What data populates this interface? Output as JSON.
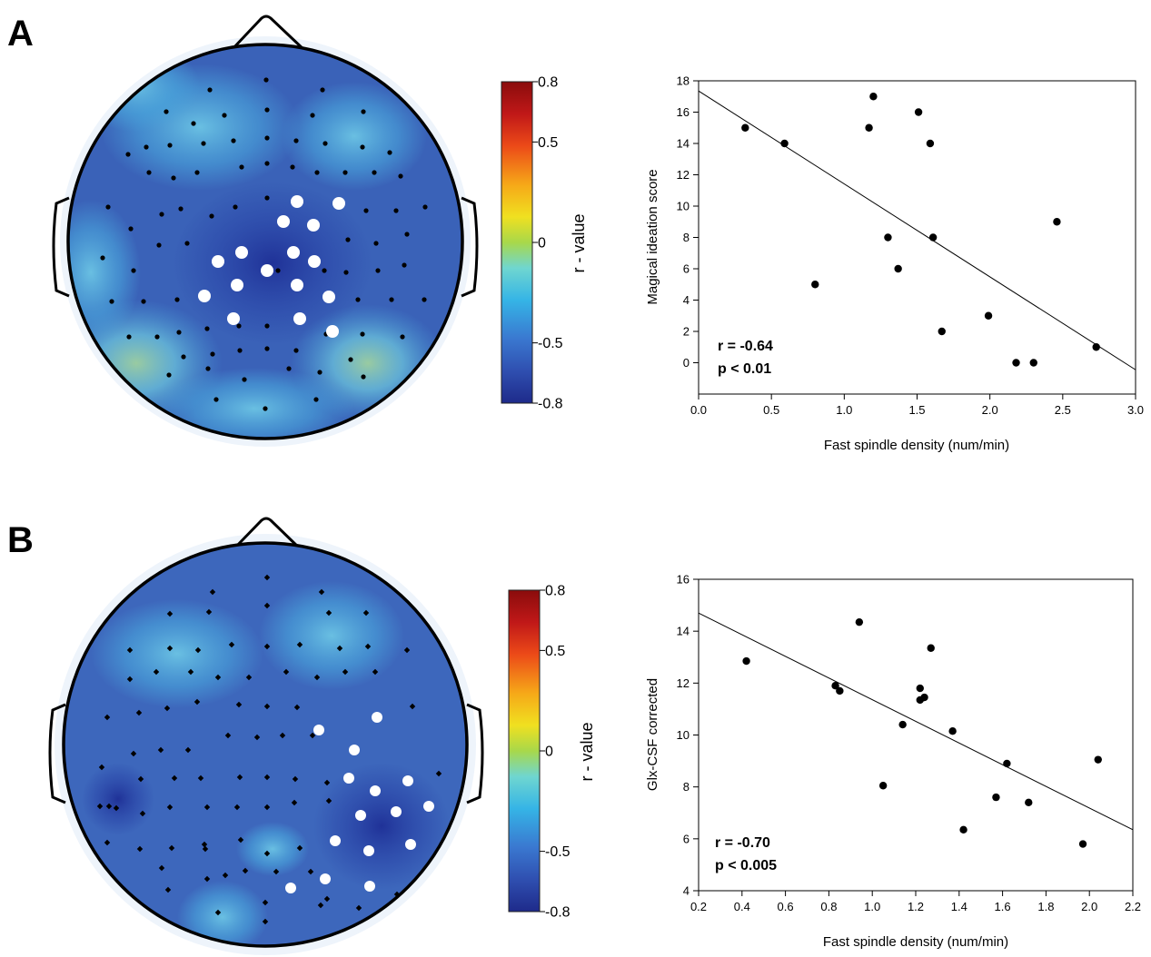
{
  "panels": [
    {
      "letter": "A",
      "colorbar": {
        "title": "r - value",
        "ticks": [
          {
            "value": 0.8,
            "label": "0.8"
          },
          {
            "value": 0.5,
            "label": "0.5"
          },
          {
            "value": 0,
            "label": "0"
          },
          {
            "value": -0.5,
            "label": "-0.5"
          },
          {
            "value": -0.8,
            "label": "-0.8"
          }
        ],
        "range": [
          -0.8,
          0.8
        ]
      },
      "topomap": {
        "electrode_style": "dot",
        "background_color": "#3a62b8",
        "significant_count": 14,
        "electrode_count": 88
      },
      "stats": {
        "r": "r = -0.64",
        "p": "p < 0.01"
      }
    },
    {
      "letter": "B",
      "colorbar": {
        "title": "r - value",
        "ticks": [
          {
            "value": 0.8,
            "label": "0.8"
          },
          {
            "value": 0.5,
            "label": "0.5"
          },
          {
            "value": 0,
            "label": "0"
          },
          {
            "value": -0.5,
            "label": "-0.5"
          },
          {
            "value": -0.8,
            "label": "-0.8"
          }
        ],
        "range": [
          -0.8,
          0.8
        ]
      },
      "topomap": {
        "electrode_style": "diamond",
        "background_color": "#3d67bc",
        "significant_count": 14,
        "electrode_count": 90
      },
      "stats": {
        "r": "r = -0.70",
        "p": "p < 0.005"
      }
    }
  ],
  "colormap": [
    "#1e2a8a",
    "#2f4fb0",
    "#3a78d0",
    "#35b4e6",
    "#6fd6d0",
    "#a8d84a",
    "#f0e020",
    "#f6a818",
    "#ec4a18",
    "#c01818",
    "#8a0c0c"
  ],
  "chart_data": [
    {
      "type": "scatter",
      "title": "",
      "xlabel": "Fast spindle density (num/min)",
      "ylabel": "Magical ideation score",
      "xlim": [
        0.0,
        3.0
      ],
      "ylim": [
        -2,
        18
      ],
      "xticks": [
        0.0,
        0.5,
        1.0,
        1.5,
        2.0,
        2.5,
        3.0
      ],
      "xtick_labels": [
        "0.0",
        "0.5",
        "1.0",
        "1.5",
        "2.0",
        "2.5",
        "3.0"
      ],
      "yticks": [
        0,
        2,
        4,
        6,
        8,
        10,
        12,
        14,
        16,
        18
      ],
      "ytick_labels": [
        "0",
        "2",
        "4",
        "6",
        "8",
        "10",
        "12",
        "14",
        "16",
        "18"
      ],
      "grid": false,
      "points": [
        {
          "x": 0.32,
          "y": 15
        },
        {
          "x": 0.59,
          "y": 14
        },
        {
          "x": 0.8,
          "y": 5
        },
        {
          "x": 1.17,
          "y": 15
        },
        {
          "x": 1.2,
          "y": 17
        },
        {
          "x": 1.3,
          "y": 8
        },
        {
          "x": 1.37,
          "y": 6
        },
        {
          "x": 1.51,
          "y": 16
        },
        {
          "x": 1.59,
          "y": 14
        },
        {
          "x": 1.61,
          "y": 8
        },
        {
          "x": 1.67,
          "y": 2
        },
        {
          "x": 1.99,
          "y": 3
        },
        {
          "x": 2.18,
          "y": 0
        },
        {
          "x": 2.3,
          "y": 0
        },
        {
          "x": 2.46,
          "y": 9
        },
        {
          "x": 2.73,
          "y": 1
        }
      ],
      "fit_line": {
        "x": [
          0.0,
          3.0
        ],
        "y": [
          17.35,
          -0.45
        ]
      }
    },
    {
      "type": "scatter",
      "title": "",
      "xlabel": "Fast spindle density (num/min)",
      "ylabel": "Glx-CSF corrected",
      "xlim": [
        0.2,
        2.2
      ],
      "ylim": [
        4,
        16
      ],
      "xticks": [
        0.2,
        0.4,
        0.6,
        0.8,
        1.0,
        1.2,
        1.4,
        1.6,
        1.8,
        2.0,
        2.2
      ],
      "xtick_labels": [
        "0.2",
        "0.4",
        "0.6",
        "0.8",
        "1.0",
        "1.2",
        "1.4",
        "1.6",
        "1.8",
        "2.0",
        "2.2"
      ],
      "yticks": [
        4,
        6,
        8,
        10,
        12,
        14,
        16
      ],
      "ytick_labels": [
        "4",
        "6",
        "8",
        "10",
        "12",
        "14",
        "16"
      ],
      "grid": false,
      "points": [
        {
          "x": 0.42,
          "y": 12.85
        },
        {
          "x": 0.83,
          "y": 11.9
        },
        {
          "x": 0.85,
          "y": 11.7
        },
        {
          "x": 0.94,
          "y": 14.35
        },
        {
          "x": 1.05,
          "y": 8.05
        },
        {
          "x": 1.14,
          "y": 10.4
        },
        {
          "x": 1.22,
          "y": 11.8
        },
        {
          "x": 1.22,
          "y": 11.35
        },
        {
          "x": 1.24,
          "y": 11.45
        },
        {
          "x": 1.27,
          "y": 13.35
        },
        {
          "x": 1.37,
          "y": 10.15
        },
        {
          "x": 1.42,
          "y": 6.35
        },
        {
          "x": 1.57,
          "y": 7.6
        },
        {
          "x": 1.62,
          "y": 8.9
        },
        {
          "x": 1.72,
          "y": 7.4
        },
        {
          "x": 1.97,
          "y": 5.8
        },
        {
          "x": 2.04,
          "y": 9.05
        }
      ],
      "fit_line": {
        "x": [
          0.2,
          2.2
        ],
        "y": [
          14.7,
          6.35
        ]
      }
    }
  ]
}
